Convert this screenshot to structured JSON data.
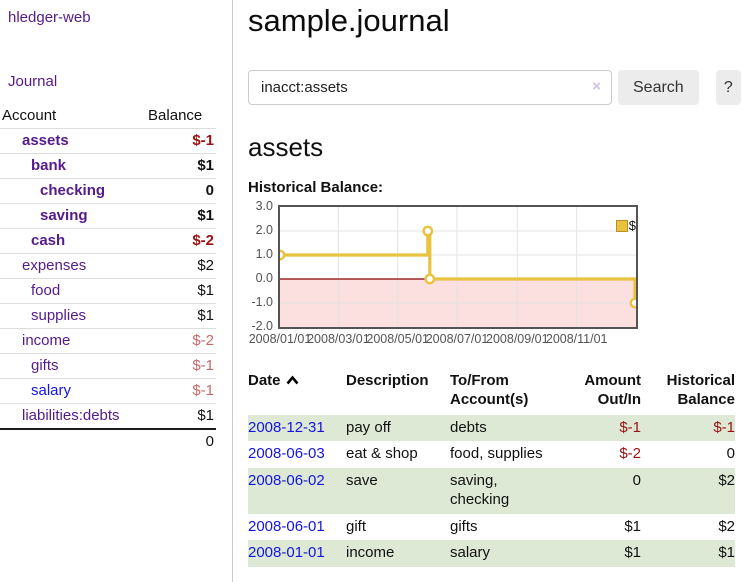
{
  "sidebar": {
    "app_title": "hledger-web",
    "journal_link": "Journal",
    "accounts_table": {
      "headers": [
        "Account",
        "Balance"
      ],
      "rows": [
        {
          "name": "assets",
          "balance": "$-1"
        },
        {
          "name": "bank",
          "balance": "$1"
        },
        {
          "name": "checking",
          "balance": "0"
        },
        {
          "name": "saving",
          "balance": "$1"
        },
        {
          "name": "cash",
          "balance": "$-2"
        },
        {
          "name": "expenses",
          "balance": "$2"
        },
        {
          "name": "food",
          "balance": "$1"
        },
        {
          "name": "supplies",
          "balance": "$1"
        },
        {
          "name": "income",
          "balance": "$-2"
        },
        {
          "name": "gifts",
          "balance": "$-1"
        },
        {
          "name": "salary",
          "balance": "$-1"
        },
        {
          "name": "liabilities:debts",
          "balance": "$1"
        }
      ],
      "total": "0"
    }
  },
  "main": {
    "title": "sample.journal",
    "search": {
      "value": "inacct:assets",
      "clear_icon": "×",
      "button_label": "Search",
      "help_label": "?"
    },
    "account_heading": "assets"
  },
  "chart_data": {
    "type": "line",
    "style": "step",
    "title": "Historical Balance:",
    "series": [
      {
        "name": "$",
        "color": "#e9c23f",
        "points": [
          [
            "2008-01-01",
            1
          ],
          [
            "2008-06-01",
            2
          ],
          [
            "2008-06-03",
            0
          ],
          [
            "2008-12-31",
            -1
          ]
        ]
      }
    ],
    "x_range": [
      "2008-01-01",
      "2009-01-01"
    ],
    "y_range": [
      -2,
      3
    ],
    "x_tick_labels": [
      "2008/01/01",
      "2008/03/01",
      "2008/05/01",
      "2008/07/01",
      "2008/09/01",
      "2008/11/01"
    ],
    "y_tick_labels": [
      "3.0",
      "2.0",
      "1.0",
      "0.0",
      "-1.0",
      "-2.0"
    ],
    "grid": true,
    "legend": {
      "label": "$",
      "position": "top-right"
    },
    "negative_region_color": "#fbd9d9",
    "zero_line_color": "#8b0000"
  },
  "register": {
    "headers": {
      "date": "Date",
      "description": "Description",
      "accounts": "To/From\nAccount(s)",
      "amount": "Amount\nOut/In",
      "balance": "Historical\nBalance"
    },
    "rows": [
      {
        "date": "2008-12-31",
        "description": "pay off",
        "accounts": "debts",
        "amount": "$-1",
        "balance": "$-1"
      },
      {
        "date": "2008-06-03",
        "description": "eat & shop",
        "accounts": "food, supplies",
        "amount": "$-2",
        "balance": "0"
      },
      {
        "date": "2008-06-02",
        "description": "save",
        "accounts": "saving,\nchecking",
        "amount": "0",
        "balance": "$2"
      },
      {
        "date": "2008-06-01",
        "description": "gift",
        "accounts": "gifts",
        "amount": "$1",
        "balance": "$2"
      },
      {
        "date": "2008-01-01",
        "description": "income",
        "accounts": "salary",
        "amount": "$1",
        "balance": "$1"
      }
    ]
  },
  "colors": {
    "link_purple": "#551A8B",
    "link_blue": "#1414e0",
    "negative": "#9e1111",
    "negative_dim": "#c56a6a",
    "row_stripe_green": "#dde9d5",
    "series_gold": "#e9c23f",
    "button_gray": "#ececec"
  }
}
